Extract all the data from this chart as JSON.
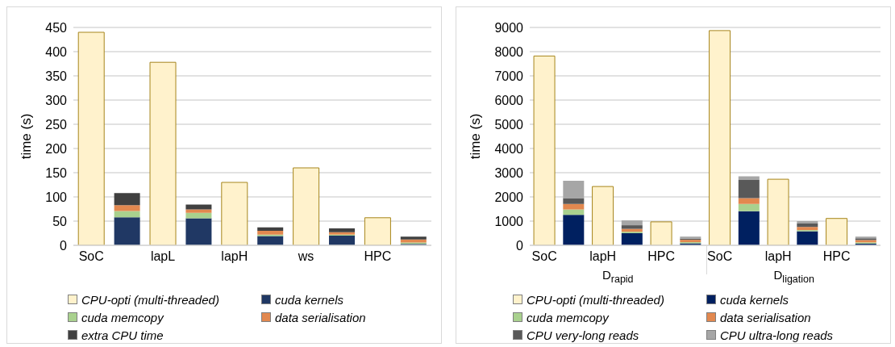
{
  "chart_data": [
    {
      "type": "bar",
      "ylabel": "time (s)",
      "categories": [
        "SoC",
        null,
        "lapL",
        null,
        "lapH",
        null,
        "ws",
        null,
        "HPC",
        null
      ],
      "ylim": [
        0,
        450
      ],
      "yticks": [
        0,
        50,
        100,
        150,
        200,
        250,
        300,
        350,
        400,
        450
      ],
      "grid": "y",
      "legend": "bottom",
      "stacked": true,
      "series": [
        {
          "name": "CPU-opti (multi-threaded)",
          "color": "#fff2cc",
          "values": [
            440,
            null,
            378,
            null,
            130,
            null,
            160,
            null,
            57,
            null
          ]
        },
        {
          "name": "cuda kernels",
          "color": "#203864",
          "values": [
            null,
            58,
            null,
            56,
            null,
            19,
            null,
            20,
            null,
            3
          ]
        },
        {
          "name": "cuda memcopy",
          "color": "#a9d18e",
          "values": [
            null,
            13,
            null,
            11,
            null,
            3,
            null,
            2,
            null,
            3
          ]
        },
        {
          "name": "data serialisation",
          "color": "#e2884f",
          "values": [
            null,
            12,
            null,
            7,
            null,
            8,
            null,
            5,
            null,
            6
          ]
        },
        {
          "name": "extra CPU time",
          "color": "#404040",
          "values": [
            null,
            25,
            null,
            10,
            null,
            7,
            null,
            8,
            null,
            6
          ]
        }
      ]
    },
    {
      "type": "bar",
      "ylabel": "time (s)",
      "categories": [
        "SoC",
        null,
        "lapH",
        null,
        "HPC",
        null,
        "SoC",
        null,
        "lapH",
        null,
        "HPC",
        null
      ],
      "ylim": [
        0,
        9000
      ],
      "yticks": [
        0,
        1000,
        2000,
        3000,
        4000,
        5000,
        6000,
        7000,
        8000,
        9000
      ],
      "grid": "y",
      "legend": "bottom",
      "stacked": true,
      "annotations": [
        "D$_{rapid}$",
        "D$_{ligation}$"
      ],
      "series": [
        {
          "name": "CPU-opti (multi-threaded)",
          "color": "#fff2cc",
          "values": [
            7820,
            null,
            2430,
            null,
            970,
            null,
            8870,
            null,
            2730,
            null,
            1110,
            null
          ]
        },
        {
          "name": "cuda kernels",
          "color": "#002060",
          "values": [
            null,
            1260,
            null,
            500,
            null,
            80,
            null,
            1410,
            null,
            580,
            null,
            70
          ]
        },
        {
          "name": "cuda memcopy",
          "color": "#a9d18e",
          "values": [
            null,
            220,
            null,
            60,
            null,
            50,
            null,
            300,
            null,
            50,
            null,
            50
          ]
        },
        {
          "name": "data serialisation",
          "color": "#e2884f",
          "values": [
            null,
            230,
            null,
            120,
            null,
            100,
            null,
            240,
            null,
            130,
            null,
            100
          ]
        },
        {
          "name": "CPU very-long reads",
          "color": "#595959",
          "values": [
            null,
            240,
            null,
            150,
            null,
            50,
            null,
            750,
            null,
            140,
            null,
            70
          ]
        },
        {
          "name": "CPU ultra-long reads",
          "color": "#a6a6a6",
          "values": [
            null,
            720,
            null,
            200,
            null,
            80,
            null,
            150,
            null,
            100,
            null,
            70
          ]
        }
      ]
    }
  ]
}
